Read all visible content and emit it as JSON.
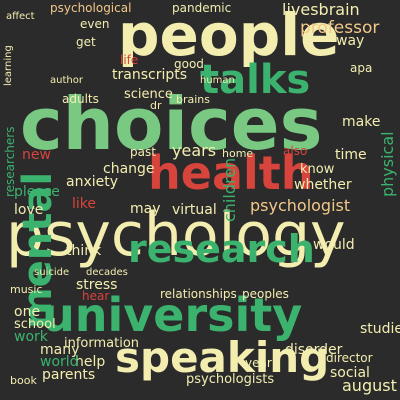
{
  "palette": {
    "background": "#2b2b2b",
    "cream": "#f3eeb0",
    "green": "#3bb36e",
    "light_green": "#79c983",
    "red": "#d7443c",
    "orange": "#e8884f",
    "peach": "#f2c88a"
  },
  "words": [
    "people",
    "choices",
    "talks",
    "psychology",
    "mental",
    "health",
    "university",
    "research",
    "speaking",
    "psychologist",
    "transcripts",
    "professor",
    "livesbrain",
    "psychological",
    "pandemic",
    "life",
    "science",
    "children",
    "years",
    "anxiety",
    "stress",
    "think",
    "please",
    "love",
    "like",
    "change",
    "virtual",
    "relationships",
    "peoples",
    "information",
    "disorder",
    "social",
    "august",
    "psychologists",
    "year",
    "help",
    "many",
    "world",
    "parents",
    "one",
    "school",
    "studies",
    "director",
    "work",
    "hear",
    "may",
    "would",
    "whether",
    "also",
    "time",
    "know",
    "make",
    "way",
    "new",
    "past",
    "home",
    "researchers",
    "adults",
    "apa",
    "physical",
    "good",
    "even",
    "get",
    "also",
    "book",
    "music",
    "suicide",
    "decades",
    "dr",
    "brains",
    "human",
    "author",
    "learning",
    "affect"
  ]
}
